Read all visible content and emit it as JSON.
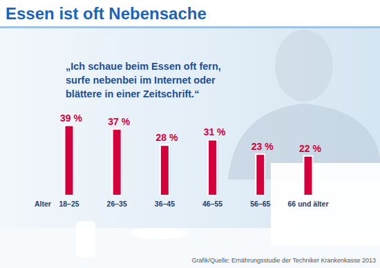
{
  "chart_data": {
    "type": "bar",
    "title": "Essen ist oft Nebensache",
    "subtitle": "„Ich schaue beim Essen oft fern, surfe nebenbei im Internet oder blättere in einer Zeitschrift.“",
    "x_label": "Alter",
    "source": "Grafik/Quelle: Ernährungsstudie der Techniker Krankenkasse 2013",
    "categories": [
      "18–25",
      "26–35",
      "36–45",
      "46–55",
      "56–65",
      "66 und älter"
    ],
    "values": [
      39,
      37,
      28,
      31,
      23,
      22
    ],
    "value_labels": [
      "39 %",
      "37 %",
      "28 %",
      "31 %",
      "23 %",
      "22 %"
    ],
    "color": "#d2003c",
    "ylim": [
      0,
      40
    ],
    "yticks": [],
    "grid": false,
    "data_labels": true,
    "tick_labels": "x"
  }
}
